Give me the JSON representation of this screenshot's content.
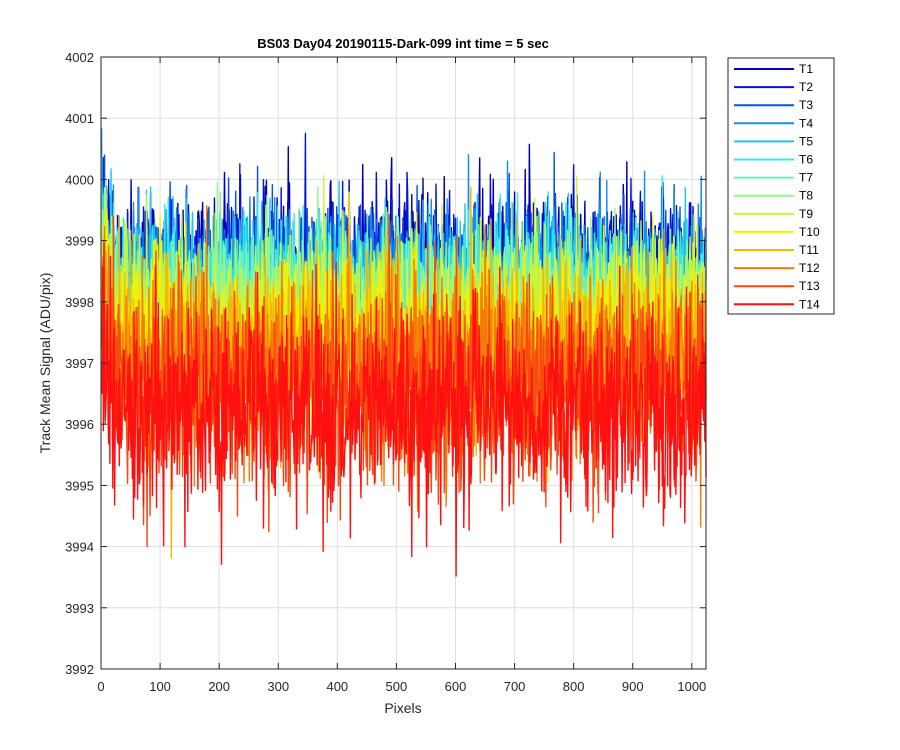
{
  "chart_data": {
    "type": "line",
    "title": "BS03 Day04 20190115-Dark-099 int time = 5 sec",
    "xlabel": "Pixels",
    "ylabel": "Track Mean Signal (ADU/pix)",
    "xlim": [
      0,
      1024
    ],
    "ylim": [
      3992,
      4002
    ],
    "xticks": [
      0,
      100,
      200,
      300,
      400,
      500,
      600,
      700,
      800,
      900,
      1000
    ],
    "yticks": [
      3992,
      3993,
      3994,
      3995,
      3996,
      3997,
      3998,
      3999,
      4000,
      4001,
      4002
    ],
    "grid": true,
    "legend_position": "outside-top-right",
    "samples_per_series": 1024,
    "series": [
      {
        "name": "T1",
        "color": "#0000b4",
        "base": 3998.55,
        "noise": 0.62
      },
      {
        "name": "T2",
        "color": "#0014d8",
        "base": 3998.45,
        "noise": 0.62
      },
      {
        "name": "T3",
        "color": "#0a50e8",
        "base": 3998.3,
        "noise": 0.62
      },
      {
        "name": "T4",
        "color": "#1a8ee6",
        "base": 3998.2,
        "noise": 0.65
      },
      {
        "name": "T5",
        "color": "#20c4ec",
        "base": 3998.15,
        "noise": 0.65
      },
      {
        "name": "T6",
        "color": "#30eaea",
        "base": 3998.05,
        "noise": 0.65
      },
      {
        "name": "T7",
        "color": "#66f2c6",
        "base": 3997.9,
        "noise": 0.68
      },
      {
        "name": "T8",
        "color": "#96f58c",
        "base": 3997.8,
        "noise": 0.68
      },
      {
        "name": "T9",
        "color": "#c8f53a",
        "base": 3997.65,
        "noise": 0.7
      },
      {
        "name": "T10",
        "color": "#f8f000",
        "base": 3997.45,
        "noise": 0.72
      },
      {
        "name": "T11",
        "color": "#f5b800",
        "base": 3997.2,
        "noise": 0.75
      },
      {
        "name": "T12",
        "color": "#f57a08",
        "base": 3996.9,
        "noise": 0.78
      },
      {
        "name": "T13",
        "color": "#f84a10",
        "base": 3996.55,
        "noise": 0.82
      },
      {
        "name": "T14",
        "color": "#ff1010",
        "base": 3996.25,
        "noise": 0.85
      }
    ]
  }
}
